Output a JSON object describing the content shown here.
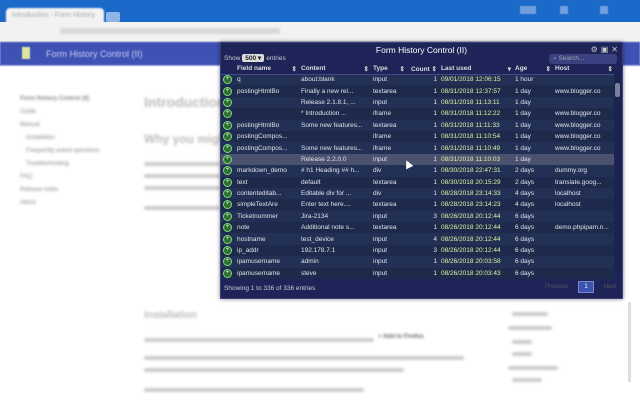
{
  "browser": {
    "tab_title": "Introduction - Form History",
    "window_controls": [
      "minimize",
      "maximize",
      "close"
    ]
  },
  "site": {
    "title": "Form History Control (II)"
  },
  "page": {
    "sidebar": [
      "Form History Control (II)",
      "Guide",
      "Manual",
      "Installation",
      "Frequently asked questions",
      "Troubleshooting",
      "FAQ",
      "Release notes",
      "About"
    ],
    "heading": "Introduction",
    "subheading": "Why you might need",
    "section": "Installation",
    "link": "+ Add to Firefox"
  },
  "dialog": {
    "title": "Form History Control (II)",
    "show_label": "Show",
    "show_value": "500",
    "entries_label": "entries",
    "search_placeholder": "Search...",
    "columns": [
      "Field name",
      "Content",
      "Type",
      "Count",
      "Last used",
      "Age",
      "Host"
    ],
    "rows": [
      [
        "q",
        "about:blank",
        "input",
        "1",
        "09/01/2018 12:06:15",
        "1 hour",
        ""
      ],
      [
        "postingHtmlBo",
        "Finally a new rel...",
        "textarea",
        "1",
        "08/31/2018 12:37:57",
        "1 day",
        "www.blogger.co"
      ],
      [
        "",
        "Release 2.1.8.1, ...",
        "input",
        "1",
        "08/31/2018 11:13:11",
        "1 day",
        ""
      ],
      [
        "",
        "* Introduction ...",
        "iframe",
        "1",
        "08/31/2018 11:12:22",
        "1 day",
        "www.blogger.co"
      ],
      [
        "postingHtmlBo",
        "Some new features...",
        "textarea",
        "1",
        "08/31/2018 11:11:33",
        "1 day",
        "www.blogger.co"
      ],
      [
        "postingCompos...",
        "",
        "iframe",
        "1",
        "08/31/2018 11:10:54",
        "1 day",
        "www.blogger.co"
      ],
      [
        "postingCompos...",
        "Some new features...",
        "iframe",
        "1",
        "08/31/2018 11:10:49",
        "1 day",
        "www.blogger.co"
      ],
      [
        "",
        "Release 2.2.0.0",
        "input",
        "1",
        "08/31/2018 11:10:03",
        "1 day",
        ""
      ],
      [
        "markdown_demo",
        "# h1 Heading ## h...",
        "div",
        "1",
        "08/30/2018 22:47:31",
        "2 days",
        "dummy.org"
      ],
      [
        "text",
        "default",
        "textarea",
        "1",
        "08/30/2018 20:15:29",
        "2 days",
        "translate.goog..."
      ],
      [
        "contenteditab...",
        "Editable div for ...",
        "div",
        "1",
        "08/28/2018 23:14:33",
        "4 days",
        "localhost"
      ],
      [
        "simpleTextAre",
        "Enter text here....",
        "textarea",
        "1",
        "08/28/2018 23:14:23",
        "4 days",
        "localhost"
      ],
      [
        "Ticketnummer",
        "Jira-2134",
        "input",
        "3",
        "08/26/2018 20:12:44",
        "6 days",
        ""
      ],
      [
        "note",
        "Additional note s...",
        "textarea",
        "1",
        "08/26/2018 20:12:44",
        "6 days",
        "demo.phpipam.n..."
      ],
      [
        "hostname",
        "test_device",
        "input",
        "4",
        "08/26/2018 20:12:44",
        "6 days",
        ""
      ],
      [
        "ip_addr",
        "192.178.7.1",
        "input",
        "3",
        "08/26/2018 20:12:44",
        "6 days",
        ""
      ],
      [
        "ipamusername",
        "admin",
        "input",
        "1",
        "08/26/2018 20:03:58",
        "6 days",
        ""
      ],
      [
        "ipamusername",
        "steve",
        "input",
        "1",
        "08/26/2018 20:03:43",
        "6 days",
        ""
      ]
    ],
    "highlighted_row": 7,
    "footer": "Showing 1 to 336 of 336 entries",
    "pager": {
      "prev": "Previous",
      "page": "1",
      "next": "Next"
    }
  }
}
